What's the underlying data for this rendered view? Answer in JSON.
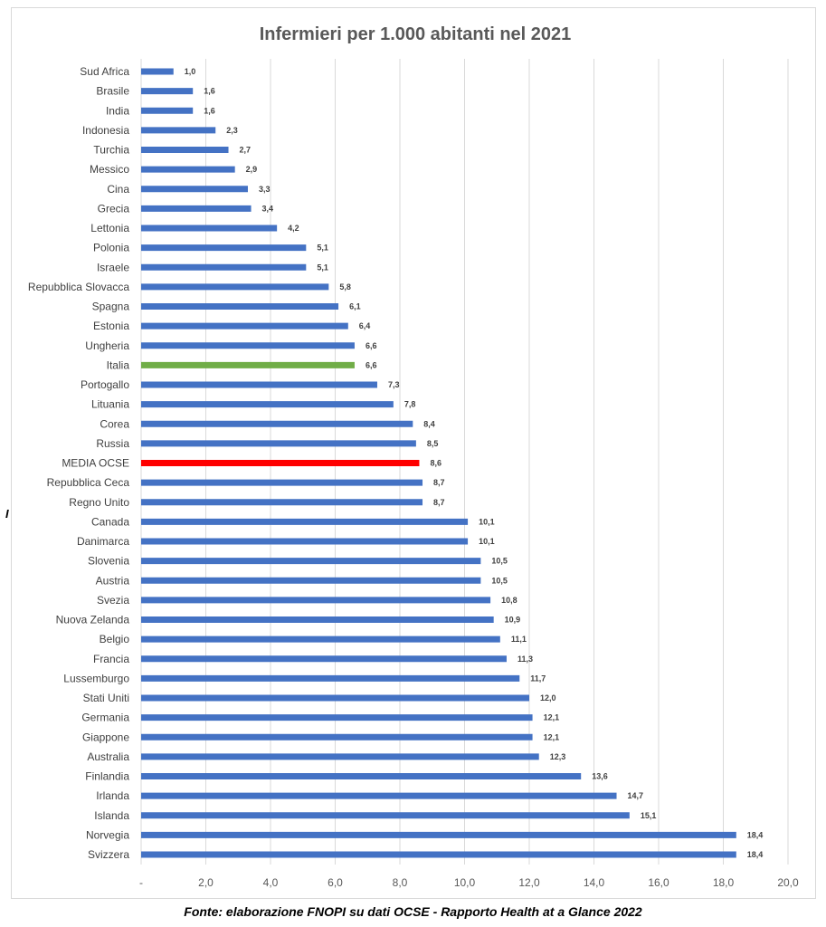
{
  "stray_glyph": "I",
  "caption": "Fonte: elaborazione FNOPI su dati OCSE - Rapporto Health at a Glance 2022",
  "colors": {
    "default": "#4472c4",
    "italia": "#70ad47",
    "media": "#ff0000"
  },
  "chart_data": {
    "type": "bar",
    "orientation": "horizontal",
    "title": "Infermieri per 1.000 abitanti nel 2021",
    "xlabel": "",
    "ylabel": "",
    "xlim": [
      0,
      20
    ],
    "x_ticks": [
      "-",
      "2,0",
      "4,0",
      "6,0",
      "8,0",
      "10,0",
      "12,0",
      "14,0",
      "16,0",
      "18,0",
      "20,0"
    ],
    "grid": "vertical",
    "legend": "none",
    "categories": [
      "Sud Africa",
      "Brasile",
      "India",
      "Indonesia",
      "Turchia",
      "Messico",
      "Cina",
      "Grecia",
      "Lettonia",
      "Polonia",
      "Israele",
      "Repubblica Slovacca",
      "Spagna",
      "Estonia",
      "Ungheria",
      "Italia",
      "Portogallo",
      "Lituania",
      "Corea",
      "Russia",
      "MEDIA OCSE",
      "Repubblica Ceca",
      "Regno Unito",
      "Canada",
      "Danimarca",
      "Slovenia",
      "Austria",
      "Svezia",
      "Nuova Zelanda",
      "Belgio",
      "Francia",
      "Lussemburgo",
      "Stati Uniti",
      "Germania",
      "Giappone",
      "Australia",
      "Finlandia",
      "Irlanda",
      "Islanda",
      "Norvegia",
      "Svizzera"
    ],
    "values": [
      1.0,
      1.6,
      1.6,
      2.3,
      2.7,
      2.9,
      3.3,
      3.4,
      4.2,
      5.1,
      5.1,
      5.8,
      6.1,
      6.4,
      6.6,
      6.6,
      7.3,
      7.8,
      8.4,
      8.5,
      8.6,
      8.7,
      8.7,
      10.1,
      10.1,
      10.5,
      10.5,
      10.8,
      10.9,
      11.1,
      11.3,
      11.7,
      12.0,
      12.1,
      12.1,
      12.3,
      13.6,
      14.7,
      15.1,
      18.4,
      18.4
    ],
    "value_labels": [
      "1,0",
      "1,6",
      "1,6",
      "2,3",
      "2,7",
      "2,9",
      "3,3",
      "3,4",
      "4,2",
      "5,1",
      "5,1",
      "5,8",
      "6,1",
      "6,4",
      "6,6",
      "6,6",
      "7,3",
      "7,8",
      "8,4",
      "8,5",
      "8,6",
      "8,7",
      "8,7",
      "10,1",
      "10,1",
      "10,5",
      "10,5",
      "10,8",
      "10,9",
      "11,1",
      "11,3",
      "11,7",
      "12,0",
      "12,1",
      "12,1",
      "12,3",
      "13,6",
      "14,7",
      "15,1",
      "18,4",
      "18,4"
    ],
    "highlight": {
      "Italia": "italia",
      "MEDIA OCSE": "media"
    }
  }
}
